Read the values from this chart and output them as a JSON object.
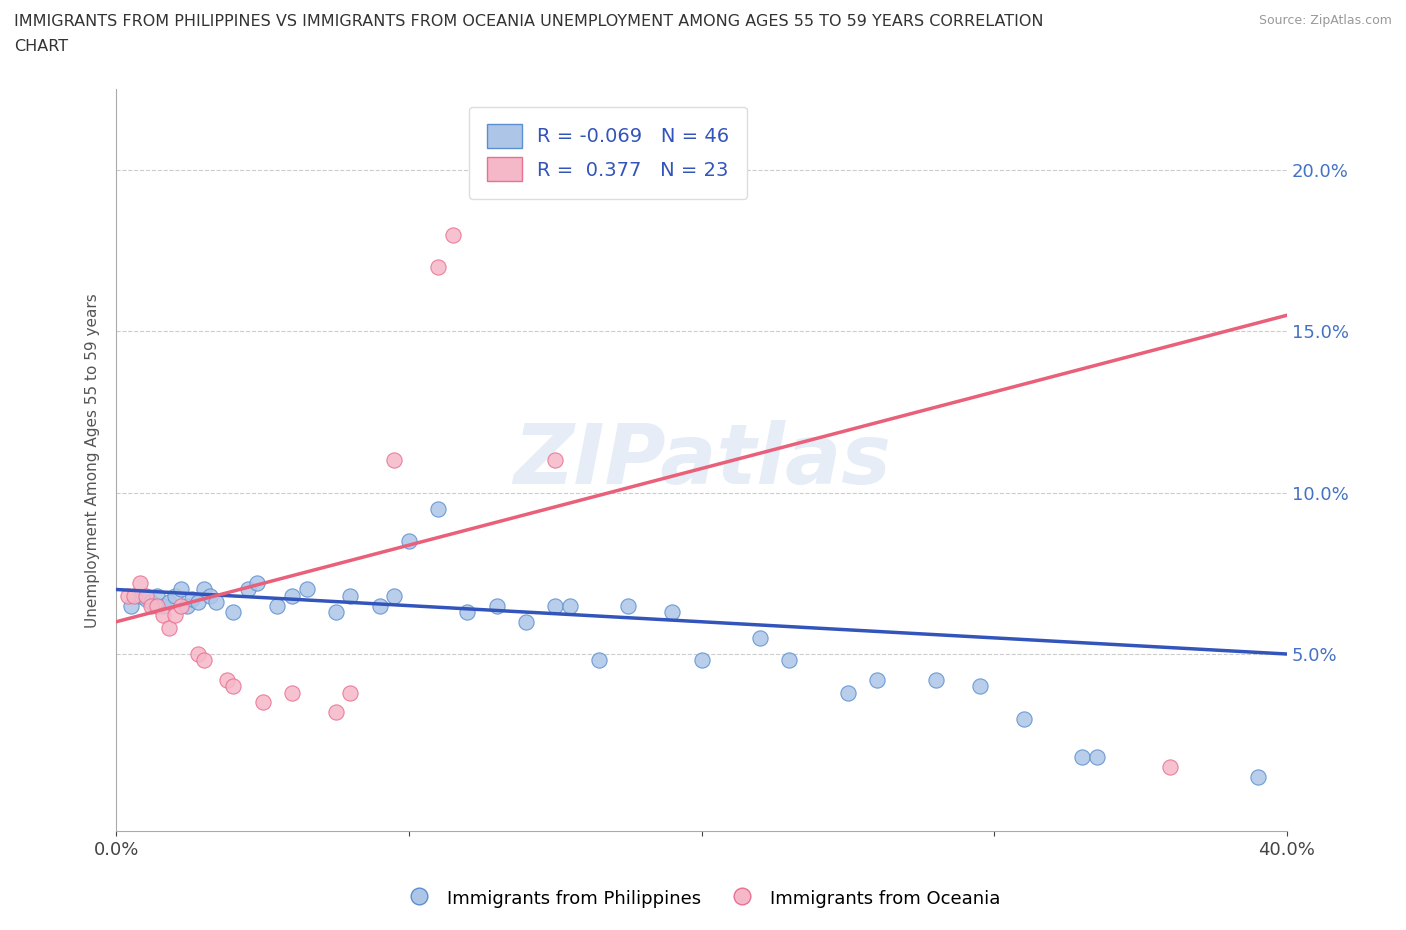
{
  "title_line1": "IMMIGRANTS FROM PHILIPPINES VS IMMIGRANTS FROM OCEANIA UNEMPLOYMENT AMONG AGES 55 TO 59 YEARS CORRELATION",
  "title_line2": "CHART",
  "source": "Source: ZipAtlas.com",
  "ylabel": "Unemployment Among Ages 55 to 59 years",
  "xlim": [
    0.0,
    0.4
  ],
  "ylim": [
    -0.005,
    0.225
  ],
  "watermark": "ZIPatlas",
  "blue_R": -0.069,
  "blue_N": 46,
  "pink_R": 0.377,
  "pink_N": 23,
  "blue_color": "#adc6e8",
  "pink_color": "#f5b8c8",
  "blue_edge_color": "#5b8fcf",
  "pink_edge_color": "#e87090",
  "blue_line_color": "#3355bb",
  "pink_line_color": "#e8607a",
  "blue_line_y0": 0.07,
  "blue_line_y1": 0.05,
  "pink_line_y0": 0.06,
  "pink_line_y1": 0.155,
  "blue_scatter": [
    [
      0.005,
      0.065
    ],
    [
      0.008,
      0.068
    ],
    [
      0.01,
      0.067
    ],
    [
      0.012,
      0.066
    ],
    [
      0.014,
      0.068
    ],
    [
      0.016,
      0.065
    ],
    [
      0.018,
      0.066
    ],
    [
      0.02,
      0.068
    ],
    [
      0.022,
      0.07
    ],
    [
      0.024,
      0.065
    ],
    [
      0.026,
      0.067
    ],
    [
      0.028,
      0.066
    ],
    [
      0.03,
      0.07
    ],
    [
      0.032,
      0.068
    ],
    [
      0.034,
      0.066
    ],
    [
      0.04,
      0.063
    ],
    [
      0.045,
      0.07
    ],
    [
      0.048,
      0.072
    ],
    [
      0.055,
      0.065
    ],
    [
      0.06,
      0.068
    ],
    [
      0.065,
      0.07
    ],
    [
      0.075,
      0.063
    ],
    [
      0.08,
      0.068
    ],
    [
      0.09,
      0.065
    ],
    [
      0.095,
      0.068
    ],
    [
      0.1,
      0.085
    ],
    [
      0.11,
      0.095
    ],
    [
      0.12,
      0.063
    ],
    [
      0.13,
      0.065
    ],
    [
      0.14,
      0.06
    ],
    [
      0.15,
      0.065
    ],
    [
      0.155,
      0.065
    ],
    [
      0.165,
      0.048
    ],
    [
      0.175,
      0.065
    ],
    [
      0.19,
      0.063
    ],
    [
      0.2,
      0.048
    ],
    [
      0.22,
      0.055
    ],
    [
      0.23,
      0.048
    ],
    [
      0.25,
      0.038
    ],
    [
      0.26,
      0.042
    ],
    [
      0.28,
      0.042
    ],
    [
      0.295,
      0.04
    ],
    [
      0.31,
      0.03
    ],
    [
      0.33,
      0.018
    ],
    [
      0.335,
      0.018
    ],
    [
      0.39,
      0.012
    ]
  ],
  "pink_scatter": [
    [
      0.004,
      0.068
    ],
    [
      0.006,
      0.068
    ],
    [
      0.008,
      0.072
    ],
    [
      0.01,
      0.068
    ],
    [
      0.012,
      0.065
    ],
    [
      0.014,
      0.065
    ],
    [
      0.016,
      0.062
    ],
    [
      0.018,
      0.058
    ],
    [
      0.02,
      0.062
    ],
    [
      0.022,
      0.065
    ],
    [
      0.028,
      0.05
    ],
    [
      0.03,
      0.048
    ],
    [
      0.038,
      0.042
    ],
    [
      0.04,
      0.04
    ],
    [
      0.05,
      0.035
    ],
    [
      0.06,
      0.038
    ],
    [
      0.075,
      0.032
    ],
    [
      0.08,
      0.038
    ],
    [
      0.095,
      0.11
    ],
    [
      0.11,
      0.17
    ],
    [
      0.115,
      0.18
    ],
    [
      0.15,
      0.11
    ],
    [
      0.36,
      0.015
    ]
  ]
}
